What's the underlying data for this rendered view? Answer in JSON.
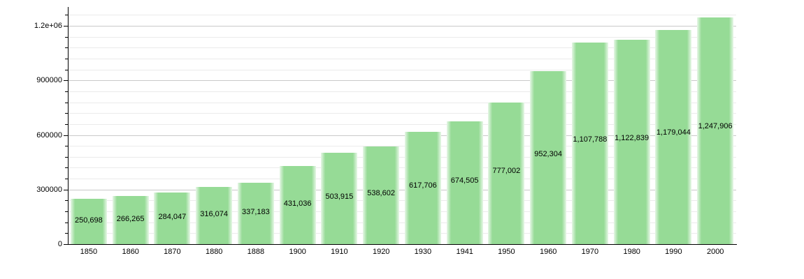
{
  "chart_data": {
    "type": "bar",
    "title": "",
    "xlabel": "",
    "ylabel": "",
    "categories": [
      "1850",
      "1860",
      "1870",
      "1880",
      "1888",
      "1900",
      "1910",
      "1920",
      "1930",
      "1941",
      "1950",
      "1960",
      "1970",
      "1980",
      "1990",
      "2000"
    ],
    "values": [
      250698,
      266265,
      284047,
      316074,
      337183,
      431036,
      503915,
      538602,
      617706,
      674505,
      777002,
      952304,
      1107788,
      1122839,
      1179044,
      1247906
    ],
    "value_labels": [
      "250,698",
      "266,265",
      "284,047",
      "316,074",
      "337,183",
      "431,036",
      "503,915",
      "538,602",
      "617,706",
      "674,505",
      "777,002",
      "952,304",
      "1,107,788",
      "1,122,839",
      "1,179,044",
      "1,247,906"
    ],
    "ylim": [
      0,
      1300000
    ],
    "y_axis": {
      "major_ticks": [
        {
          "value": 0,
          "label": "0"
        },
        {
          "value": 300000,
          "label": "300000"
        },
        {
          "value": 600000,
          "label": "600000"
        },
        {
          "value": 900000,
          "label": "900000"
        },
        {
          "value": 1200000,
          "label": "1.2e+06"
        }
      ],
      "minor_step": 60000,
      "minor_max": 1260000
    },
    "grid": "horizontal major+minor",
    "legend": "none",
    "colors": {
      "bar_fill": "#96db96",
      "bar_edge_fade": "#e7f7e7",
      "major_grid": "#c9c9c9",
      "minor_grid": "#ebebeb",
      "axis": "#000000",
      "text": "#000000",
      "background": "#ffffff"
    }
  }
}
